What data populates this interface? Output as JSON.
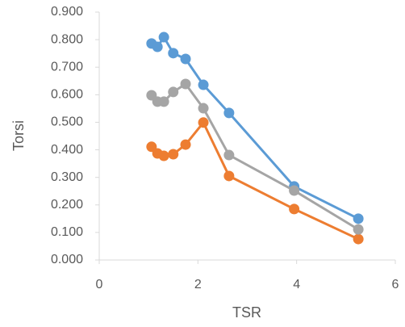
{
  "chart_data": {
    "type": "scatter-line",
    "x_label": "TSR",
    "y_label": "Torsi",
    "x": [
      1.06,
      1.18,
      1.31,
      1.5,
      1.75,
      2.11,
      2.63,
      3.95,
      5.25
    ],
    "series": [
      {
        "color": "#5b9bd5",
        "values": [
          0.786,
          0.774,
          0.809,
          0.751,
          0.73,
          0.636,
          0.534,
          0.267,
          0.15
        ]
      },
      {
        "color": "#ed7d31",
        "values": [
          0.411,
          0.387,
          0.378,
          0.384,
          0.419,
          0.499,
          0.305,
          0.185,
          0.076
        ]
      },
      {
        "color": "#a5a5a5",
        "values": [
          0.598,
          0.575,
          0.575,
          0.61,
          0.639,
          0.551,
          0.381,
          0.252,
          0.111
        ]
      }
    ],
    "xlim": [
      0,
      6
    ],
    "xticks": [
      0,
      2,
      4,
      6
    ],
    "ylim": [
      0,
      0.9
    ],
    "yticks": [
      {
        "value": 0,
        "label": "0.000"
      },
      {
        "value": 0.1,
        "label": "0.100"
      },
      {
        "value": 0.2,
        "label": "0.200"
      },
      {
        "value": 0.3,
        "label": "0.300"
      },
      {
        "value": 0.4,
        "label": "0.400"
      },
      {
        "value": 0.5,
        "label": "0.500"
      },
      {
        "value": 0.6,
        "label": "0.600"
      },
      {
        "value": 0.7,
        "label": "0.700"
      },
      {
        "value": 0.8,
        "label": "0.800"
      },
      {
        "value": 0.9,
        "label": "0.900"
      }
    ]
  }
}
